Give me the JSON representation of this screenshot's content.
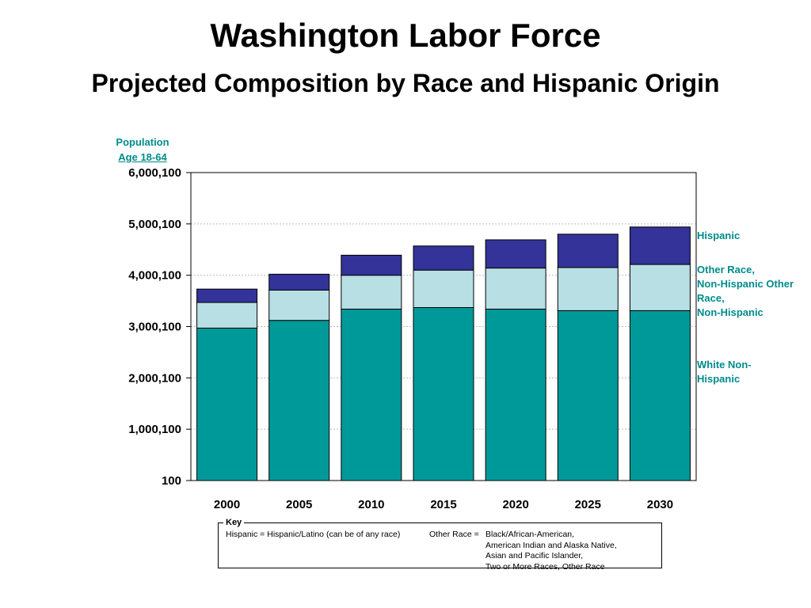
{
  "chart_data": {
    "type": "bar",
    "stacked": true,
    "title": "Washington Labor Force",
    "subtitle": "Projected Composition by Race and Hispanic Origin",
    "ylabel": [
      "Population",
      "Age 18-64"
    ],
    "xlabel": "",
    "categories": [
      "2000",
      "2005",
      "2010",
      "2015",
      "2020",
      "2025",
      "2030"
    ],
    "ylim": [
      100,
      6000100
    ],
    "yticks": [
      "100",
      "1,000,100",
      "2,000,100",
      "3,000,100",
      "4,000,100",
      "5,000,100",
      "6,000,100"
    ],
    "ytick_values": [
      100,
      1000100,
      2000100,
      3000100,
      4000100,
      5000100,
      6000100
    ],
    "grid": true,
    "series": [
      {
        "name": "White Non-Hispanic",
        "color": "#009999",
        "values": [
          2970000,
          3120000,
          3340000,
          3370000,
          3340000,
          3310000,
          3310000
        ]
      },
      {
        "name": "Other Race, Non-Hispanic",
        "color": "#B8DFE3",
        "values": [
          500000,
          590000,
          660000,
          730000,
          800000,
          840000,
          900000
        ]
      },
      {
        "name": "Hispanic",
        "color": "#333399",
        "values": [
          260000,
          310000,
          390000,
          470000,
          550000,
          650000,
          730000
        ]
      }
    ],
    "legend_labels": {
      "hispanic": "Hispanic",
      "other": "Other Race,\nNon-Hispanic Other Race,\nNon-Hispanic",
      "white": "White Non-\nHispanic"
    }
  },
  "key": {
    "title": "Key",
    "hispanic_def": "Hispanic = Hispanic/Latino (can be of any race)",
    "other_label": "Other Race = ",
    "other_lines": [
      "Black/African-American,",
      "American Indian and Alaska Native,",
      "Asian and Pacific Islander,",
      "Two or More Races, Other Race"
    ]
  }
}
